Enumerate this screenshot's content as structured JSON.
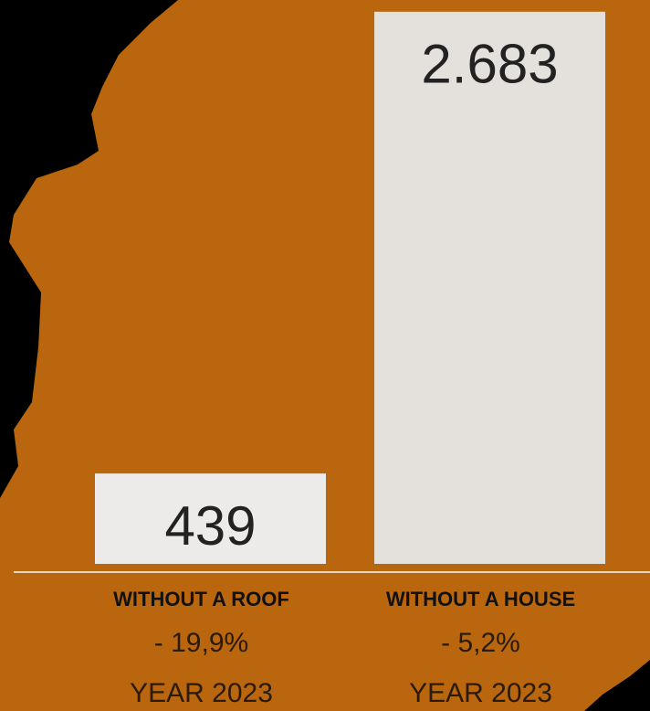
{
  "chart_data": {
    "type": "bar",
    "categories": [
      "WITHOUT A ROOF",
      "WITHOUT A HOUSE"
    ],
    "values": [
      439,
      2683
    ],
    "value_labels": [
      "439",
      "2.683"
    ],
    "changes": [
      "- 19,9%",
      "- 5,2%"
    ],
    "periods": [
      "YEAR 2023",
      "YEAR 2023"
    ],
    "colors": [
      "#ecebea",
      "#e4e0dc"
    ],
    "ylim": [
      0,
      2740
    ]
  }
}
